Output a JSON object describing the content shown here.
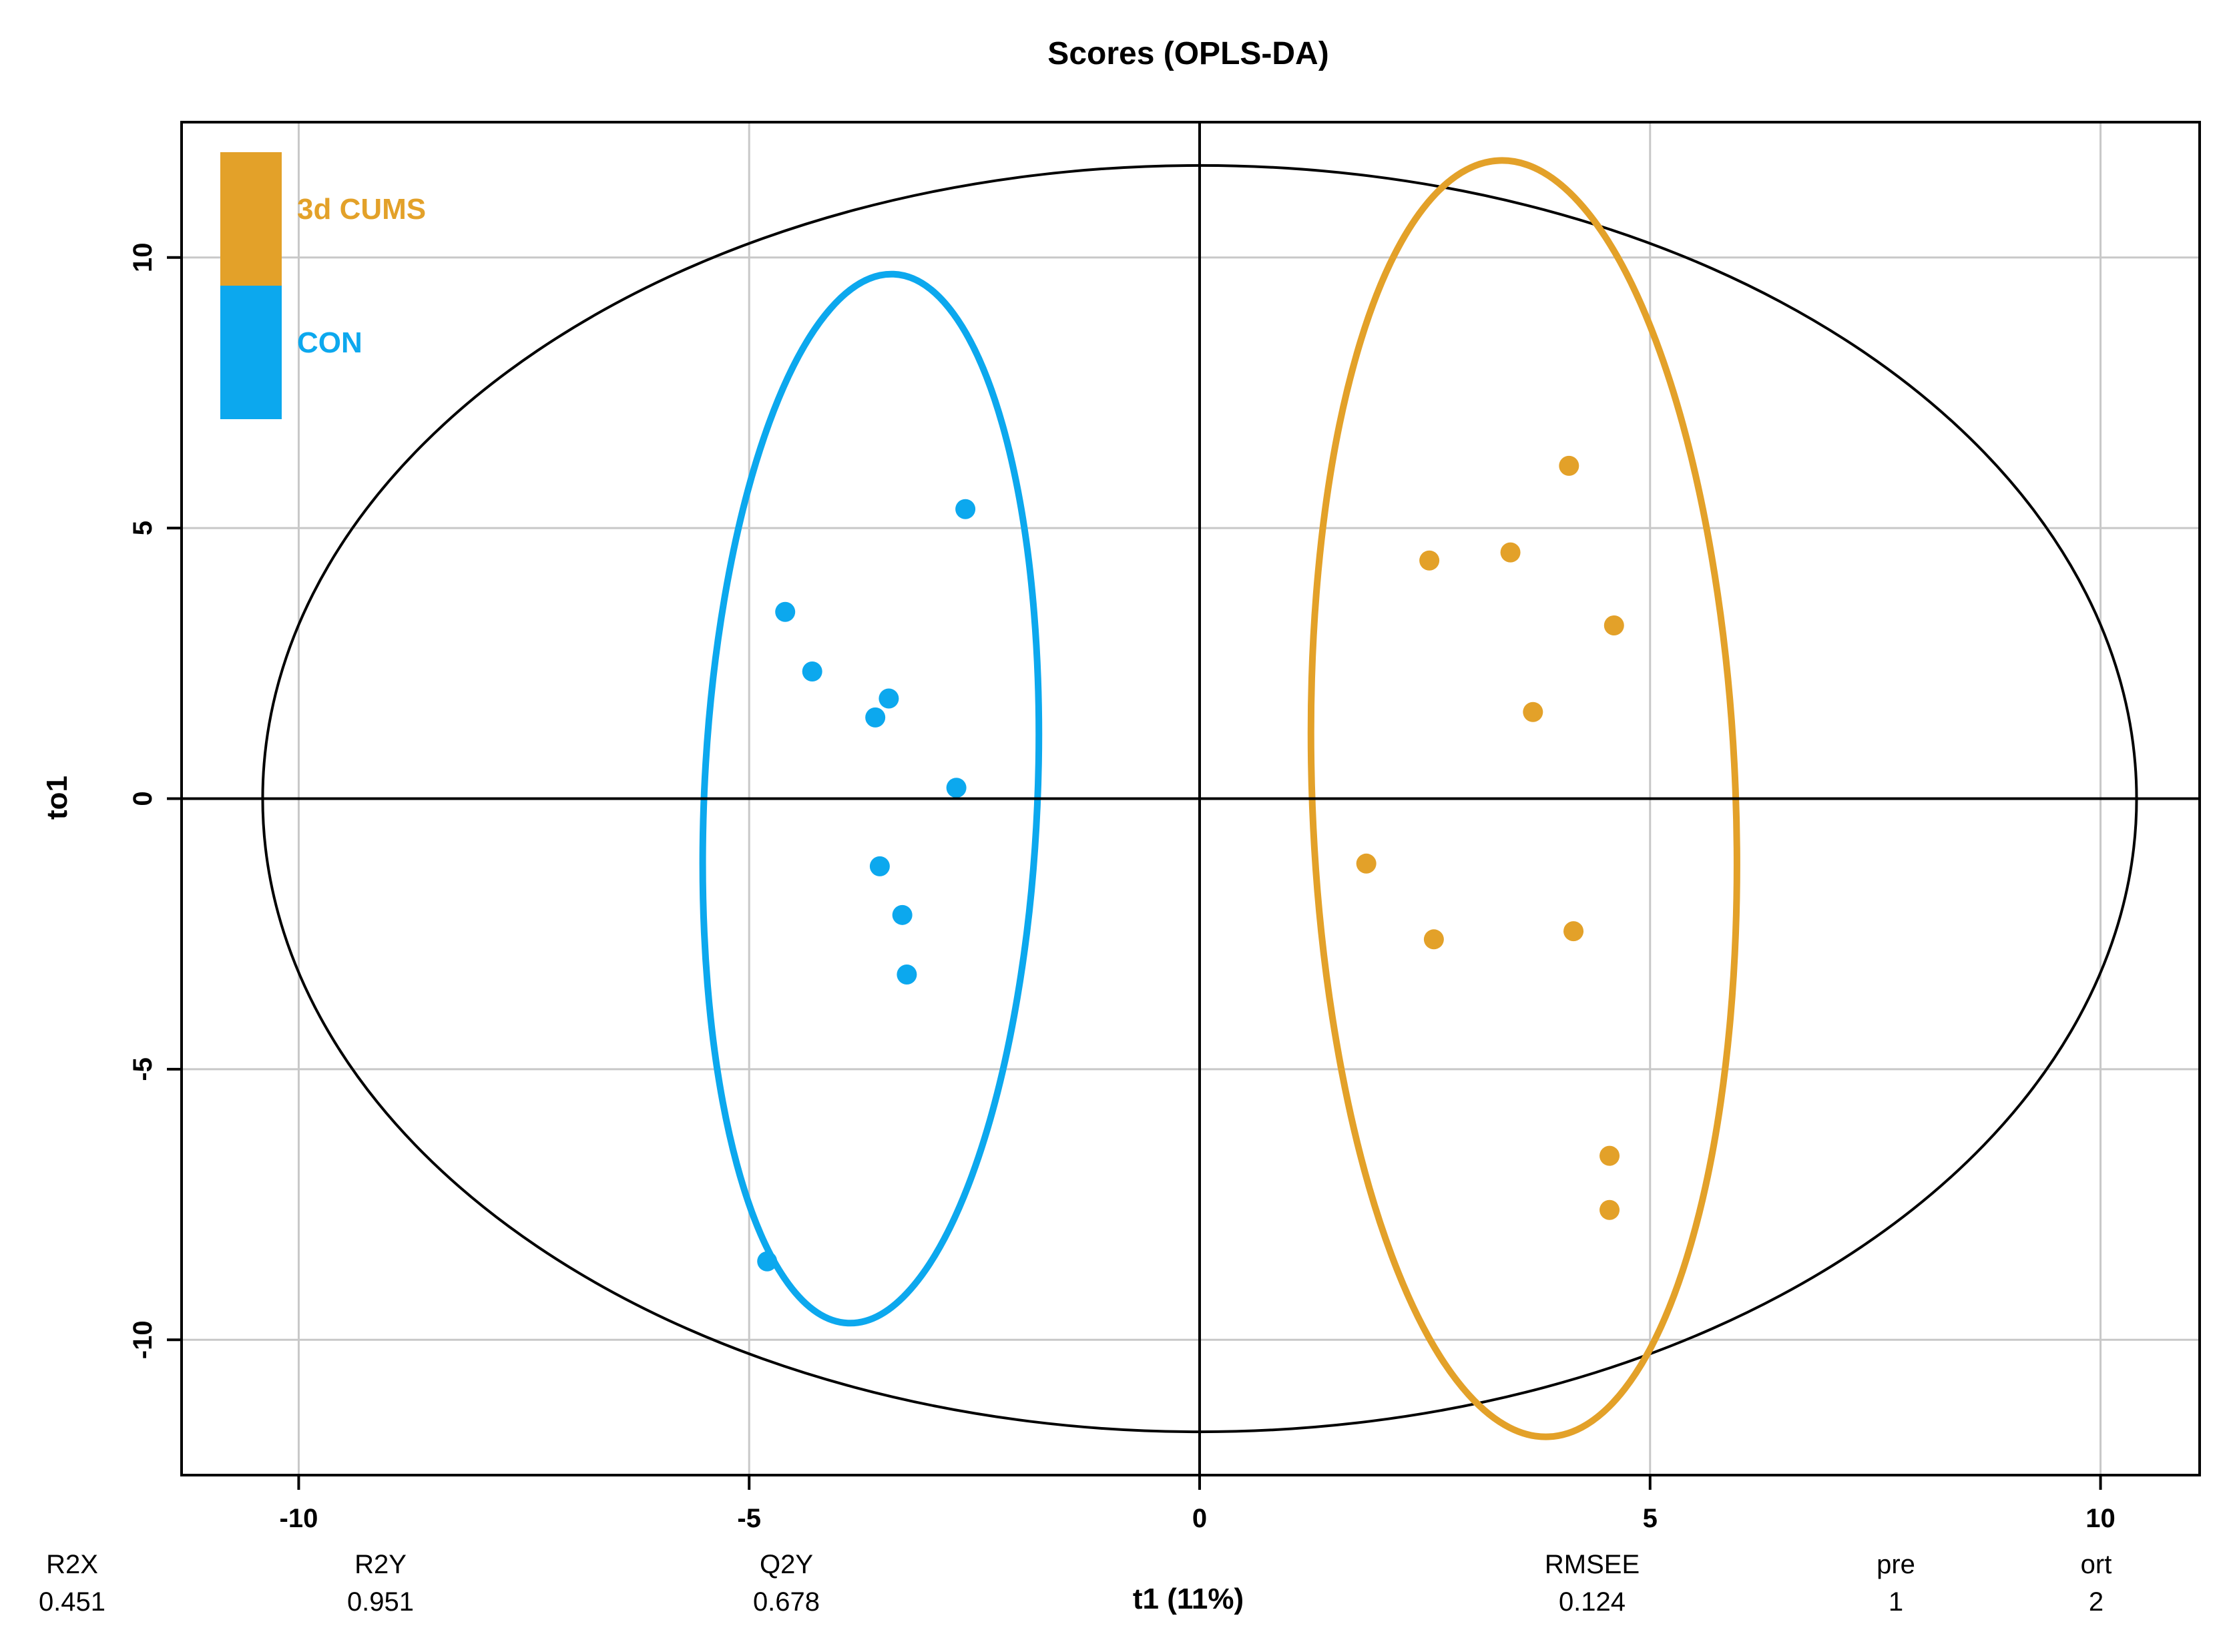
{
  "chart_data": {
    "type": "scatter",
    "title": "Scores (OPLS-DA)",
    "xlabel": "t1 (11%)",
    "ylabel": "to1",
    "xlim": [
      -11.3,
      11.1
    ],
    "ylim": [
      -12.5,
      12.5
    ],
    "xticks": [
      -10,
      -5,
      0,
      5,
      10
    ],
    "yticks": [
      -10,
      -5,
      0,
      5,
      10
    ],
    "grid": true,
    "legend_position": "top-left",
    "colors": {
      "3d CUMS": "#E3A129",
      "CON": "#0CA8EE",
      "axis": "#000000",
      "grid": "#C8C8C8"
    },
    "series": [
      {
        "name": "CON",
        "points": [
          {
            "x": -2.6,
            "y": 5.35
          },
          {
            "x": -4.6,
            "y": 3.45
          },
          {
            "x": -4.3,
            "y": 2.35
          },
          {
            "x": -3.45,
            "y": 1.85
          },
          {
            "x": -3.6,
            "y": 1.5
          },
          {
            "x": -2.7,
            "y": 0.2
          },
          {
            "x": -3.55,
            "y": -1.25
          },
          {
            "x": -3.3,
            "y": -2.15
          },
          {
            "x": -3.25,
            "y": -3.25
          },
          {
            "x": -4.8,
            "y": -8.55
          }
        ],
        "ellipse": {
          "cx": -3.65,
          "cy": 0.0,
          "rx": 1.85,
          "ry": 9.7,
          "tilt_deg": 2.5
        }
      },
      {
        "name": "3d CUMS",
        "points": [
          {
            "x": 4.1,
            "y": 6.15
          },
          {
            "x": 2.55,
            "y": 4.4
          },
          {
            "x": 3.45,
            "y": 4.55
          },
          {
            "x": 4.6,
            "y": 3.2
          },
          {
            "x": 3.7,
            "y": 1.6
          },
          {
            "x": 1.85,
            "y": -1.2
          },
          {
            "x": 2.6,
            "y": -2.6
          },
          {
            "x": 4.15,
            "y": -2.45
          },
          {
            "x": 4.55,
            "y": -6.6
          },
          {
            "x": 4.55,
            "y": -7.6
          }
        ],
        "ellipse": {
          "cx": 3.6,
          "cy": 0.0,
          "rx": 2.35,
          "ry": 11.8,
          "tilt_deg": -2.2
        }
      }
    ],
    "hotelling_ellipse": {
      "cx": 0,
      "cy": 0,
      "rx": 10.4,
      "ry": 11.7
    }
  },
  "stats": [
    {
      "label": "R2X",
      "value": "0.451"
    },
    {
      "label": "R2Y",
      "value": "0.951"
    },
    {
      "label": "Q2Y",
      "value": "0.678"
    },
    {
      "label": "RMSEE",
      "value": "0.124"
    },
    {
      "label": "pre",
      "value": "1"
    },
    {
      "label": "ort",
      "value": "2"
    }
  ]
}
